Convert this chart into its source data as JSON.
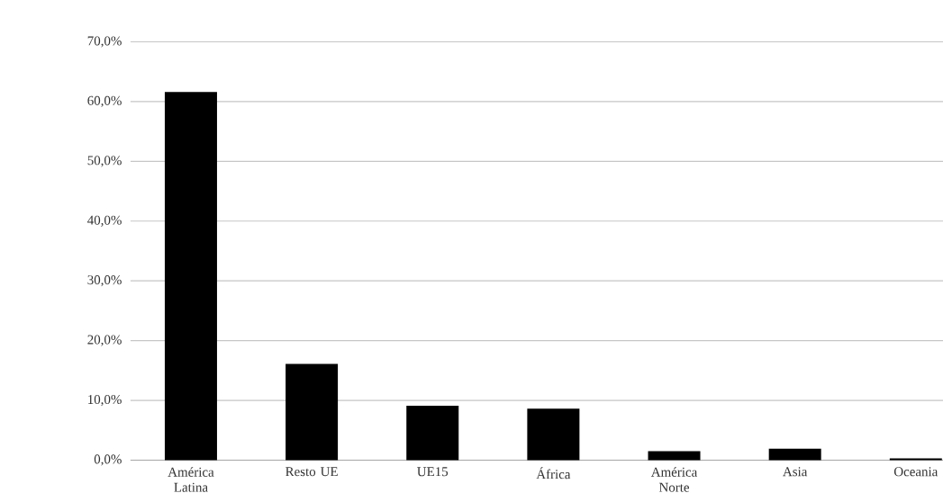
{
  "chart_data": {
    "type": "bar",
    "categories": [
      "América Latina",
      "Resto UE",
      "UE15",
      "África",
      "América Norte",
      "Asia",
      "Oceania"
    ],
    "values": [
      61.6,
      16.1,
      9.1,
      8.6,
      1.5,
      1.9,
      0.3
    ],
    "color": "#000000",
    "ylim": [
      0,
      70
    ],
    "yticks": [
      {
        "value": 0,
        "label": "0,0%"
      },
      {
        "value": 10,
        "label": "10,0%"
      },
      {
        "value": 20,
        "label": "20,0%"
      },
      {
        "value": 30,
        "label": "30,0%"
      },
      {
        "value": 40,
        "label": "40,0%"
      },
      {
        "value": 50,
        "label": "50,0%"
      },
      {
        "value": 60,
        "label": "60,0%"
      },
      {
        "value": 70,
        "label": "70,0%"
      }
    ],
    "grid": "y"
  }
}
